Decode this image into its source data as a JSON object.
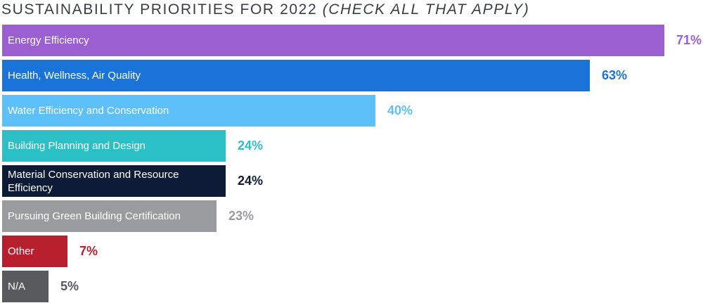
{
  "chart_data": {
    "type": "bar",
    "orientation": "horizontal",
    "title": "SUSTAINABILITY PRIORITIES FOR 2022",
    "subtitle": "(CHECK ALL THAT APPLY)",
    "unit": "%",
    "xlim": [
      0,
      71
    ],
    "grid": false,
    "legend": "none",
    "categories": [
      "Energy Efficiency",
      "Health, Wellness, Air Quality",
      "Water Efficiency and Conservation",
      "Building Planning and Design",
      "Material Conservation and Resource Efficiency",
      "Pursuing Green Building Certification",
      "Other",
      "N/A"
    ],
    "values": [
      71,
      63,
      40,
      24,
      24,
      23,
      7,
      5
    ],
    "value_labels": [
      "71%",
      "63%",
      "40%",
      "24%",
      "24%",
      "23%",
      "7%",
      "5%"
    ],
    "colors": [
      "#9b5fd1",
      "#1a73d9",
      "#5ec0f8",
      "#2bbfc6",
      "#0d1b36",
      "#9a9b9f",
      "#b71f2e",
      "#595a5e"
    ]
  }
}
